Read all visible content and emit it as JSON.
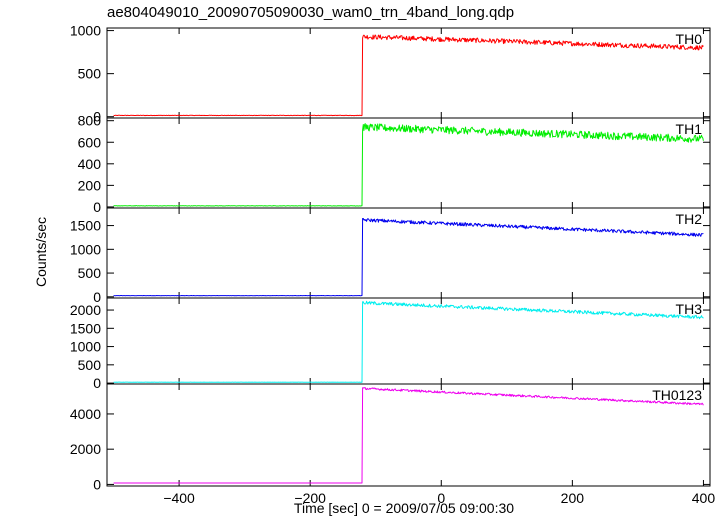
{
  "chart_data": {
    "type": "line",
    "title": "ae804049010_20090705090030_wam0_trn_4band_long.qdp",
    "xlabel": "Time [sec] 0 = 2009/07/05 09:00:30",
    "ylabel": "Counts/sec",
    "xlim": [
      -510,
      410
    ],
    "xticks": [
      -400,
      -200,
      0,
      200,
      400
    ],
    "x_tick_labels": [
      "−400",
      "−200",
      "0",
      "200",
      "400"
    ],
    "grid": false,
    "panels": [
      {
        "name": "TH0",
        "color": "#ff0000",
        "ylim": [
          -15,
          1030
        ],
        "yticks": [
          0,
          500,
          1000
        ],
        "y_tick_labels": [
          "0",
          "500",
          "1000"
        ],
        "x_range": [
          -500,
          400
        ],
        "onset_x": -120,
        "pre_level": 15,
        "level_start": 930,
        "level_end": 800,
        "noise": 55
      },
      {
        "name": "TH1",
        "color": "#00ee00",
        "ylim": [
          -10,
          825
        ],
        "yticks": [
          0,
          200,
          400,
          600,
          800
        ],
        "y_tick_labels": [
          "0",
          "200",
          "400",
          "600",
          "800"
        ],
        "x_range": [
          -500,
          400
        ],
        "onset_x": -120,
        "pre_level": 10,
        "level_start": 740,
        "level_end": 630,
        "noise": 70
      },
      {
        "name": "TH2",
        "color": "#0000ee",
        "ylim": [
          -25,
          1870
        ],
        "yticks": [
          0,
          500,
          1000,
          1500
        ],
        "y_tick_labels": [
          "0",
          "500",
          "1000",
          "1500"
        ],
        "x_range": [
          -500,
          400
        ],
        "onset_x": -120,
        "pre_level": 25,
        "level_start": 1620,
        "level_end": 1300,
        "noise": 70
      },
      {
        "name": "TH3",
        "color": "#00eeee",
        "ylim": [
          -25,
          2330
        ],
        "yticks": [
          0,
          500,
          1000,
          1500,
          2000
        ],
        "y_tick_labels": [
          "0",
          "500",
          "1000",
          "1500",
          "2000"
        ],
        "x_range": [
          -500,
          400
        ],
        "onset_x": -120,
        "pre_level": 25,
        "level_start": 2200,
        "level_end": 1800,
        "noise": 90
      },
      {
        "name": "TH0123",
        "color": "#ee00ee",
        "ylim": [
          -90,
          5700
        ],
        "yticks": [
          0,
          2000,
          4000
        ],
        "y_tick_labels": [
          "0",
          "2000",
          "4000"
        ],
        "x_range": [
          -500,
          400
        ],
        "onset_x": -120,
        "pre_level": 80,
        "level_start": 5450,
        "level_end": 4550,
        "noise": 120
      }
    ]
  }
}
